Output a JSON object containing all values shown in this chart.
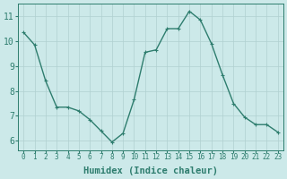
{
  "x": [
    0,
    1,
    2,
    3,
    4,
    5,
    6,
    7,
    8,
    9,
    10,
    11,
    12,
    13,
    14,
    15,
    16,
    17,
    18,
    19,
    20,
    21,
    22,
    23
  ],
  "y": [
    10.35,
    9.85,
    8.4,
    7.35,
    7.35,
    7.2,
    6.85,
    6.4,
    5.95,
    6.3,
    7.65,
    9.55,
    9.65,
    10.5,
    10.5,
    11.2,
    10.85,
    9.9,
    8.65,
    7.5,
    6.95,
    6.65,
    6.65,
    6.35
  ],
  "line_color": "#2e7d6e",
  "marker": "+",
  "marker_size": 3,
  "bg_color": "#cce9e9",
  "grid_color": "#b0d0d0",
  "xlabel": "Humidex (Indice chaleur)",
  "xlabel_fontsize": 7.5,
  "yticks": [
    6,
    7,
    8,
    9,
    10,
    11
  ],
  "xticks": [
    0,
    1,
    2,
    3,
    4,
    5,
    6,
    7,
    8,
    9,
    10,
    11,
    12,
    13,
    14,
    15,
    16,
    17,
    18,
    19,
    20,
    21,
    22,
    23
  ],
  "xlim": [
    -0.5,
    23.5
  ],
  "ylim": [
    5.6,
    11.5
  ],
  "ytick_fontsize": 7,
  "xtick_fontsize": 5.5,
  "line_width": 1.0
}
